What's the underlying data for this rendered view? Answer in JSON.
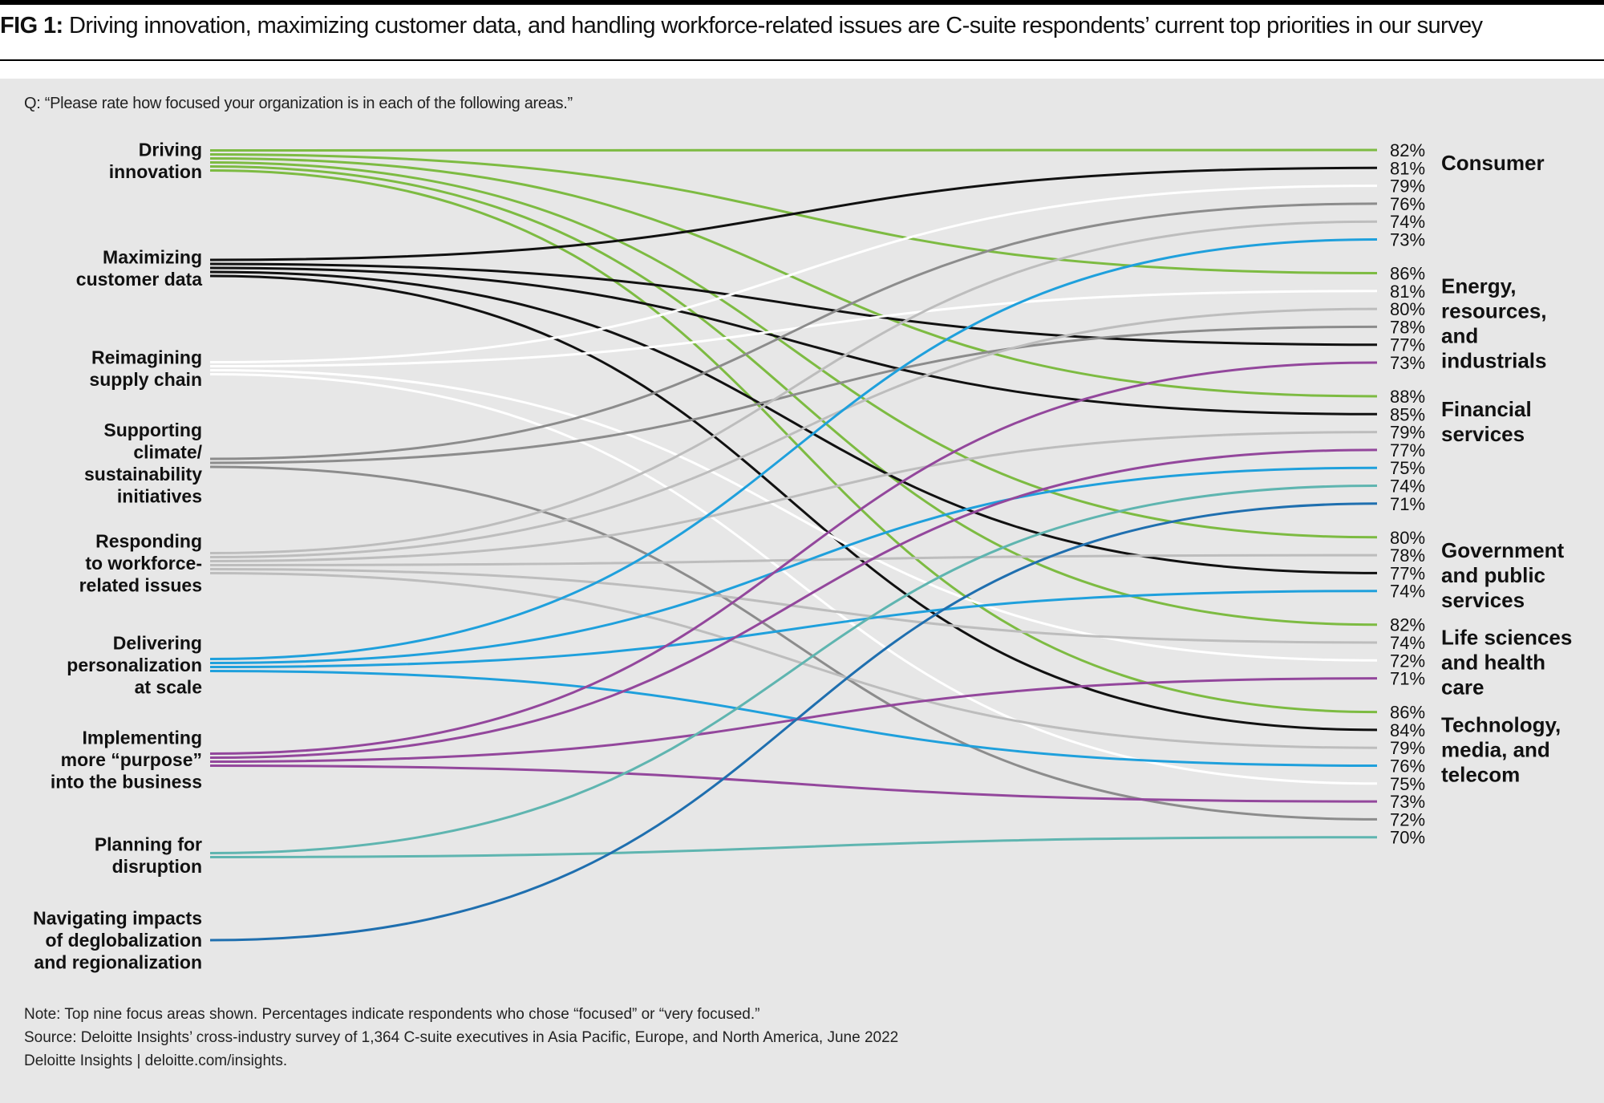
{
  "figure": {
    "label": "FIG 1:",
    "title": "Driving innovation, maximizing customer data, and handling workforce-related issues are C-suite respondents’ current top priorities in our survey",
    "question": "Q: “Please rate how focused your organization is in each of the following areas.”"
  },
  "footer": {
    "note": "Note: Top nine focus areas shown. Percentages indicate respondents who chose “focused” or “very focused.”",
    "source": "Source: Deloitte Insights’ cross-industry survey of 1,364 C-suite executives in Asia Pacific, Europe, and North America, June 2022",
    "credit": "Deloitte Insights | deloitte.com/insights."
  },
  "colors": {
    "background": "#e7e7e7",
    "Driving innovation": "#7dbb42",
    "Maximizing customer data": "#111111",
    "Reimagining supply chain": "#ffffff",
    "Supporting climate/ sustainability initiatives": "#8c8c8c",
    "Responding to workforce-related issues": "#bdbdbd",
    "Delivering personalization at scale": "#1fa0dc",
    "Implementing more “purpose” into the business": "#93479c",
    "Planning for disruption": "#5fb5b0",
    "Navigating impacts of deglobalization and regionalization": "#1f6faf"
  },
  "chart_data": {
    "type": "slope",
    "focus_areas": [
      {
        "name": "Driving innovation",
        "lines": [
          "Driving",
          "innovation"
        ]
      },
      {
        "name": "Maximizing customer data",
        "lines": [
          "Maximizing",
          "customer data"
        ]
      },
      {
        "name": "Reimagining supply chain",
        "lines": [
          "Reimagining",
          "supply chain"
        ]
      },
      {
        "name": "Supporting climate/ sustainability initiatives",
        "lines": [
          "Supporting",
          "climate/",
          "sustainability",
          "initiatives"
        ]
      },
      {
        "name": "Responding to workforce-related issues",
        "lines": [
          "Responding",
          "to workforce-",
          "related issues"
        ]
      },
      {
        "name": "Delivering personalization at scale",
        "lines": [
          "Delivering",
          "personalization",
          "at scale"
        ]
      },
      {
        "name": "Implementing more “purpose” into the business",
        "lines": [
          "Implementing",
          "more “purpose”",
          "into the business"
        ]
      },
      {
        "name": "Planning for disruption",
        "lines": [
          "Planning for",
          "disruption"
        ]
      },
      {
        "name": "Navigating impacts of deglobalization and regionalization",
        "lines": [
          "Navigating impacts",
          "of deglobalization",
          "and regionalization"
        ]
      }
    ],
    "industries": [
      {
        "name": "Consumer",
        "lines": [
          "Consumer"
        ],
        "entries": [
          {
            "area": "Driving innovation",
            "value": 82
          },
          {
            "area": "Maximizing customer data",
            "value": 81
          },
          {
            "area": "Reimagining supply chain",
            "value": 79
          },
          {
            "area": "Supporting climate/ sustainability initiatives",
            "value": 76
          },
          {
            "area": "Responding to workforce-related issues",
            "value": 74
          },
          {
            "area": "Delivering personalization at scale",
            "value": 73
          }
        ]
      },
      {
        "name": "Energy, resources, and industrials",
        "lines": [
          "Energy,",
          "resources,",
          "and",
          "industrials"
        ],
        "entries": [
          {
            "area": "Driving innovation",
            "value": 86
          },
          {
            "area": "Reimagining supply chain",
            "value": 81
          },
          {
            "area": "Responding to workforce-related issues",
            "value": 80
          },
          {
            "area": "Supporting climate/ sustainability initiatives",
            "value": 78
          },
          {
            "area": "Maximizing customer data",
            "value": 77
          },
          {
            "area": "Implementing more “purpose” into the business",
            "value": 73
          }
        ]
      },
      {
        "name": "Financial services",
        "lines": [
          "Financial",
          "services"
        ],
        "entries": [
          {
            "area": "Driving innovation",
            "value": 88
          },
          {
            "area": "Maximizing customer data",
            "value": 85
          },
          {
            "area": "Responding to workforce-related issues",
            "value": 79
          },
          {
            "area": "Implementing more “purpose” into the business",
            "value": 77
          },
          {
            "area": "Delivering personalization at scale",
            "value": 75
          },
          {
            "area": "Planning for disruption",
            "value": 74
          },
          {
            "area": "Navigating impacts of deglobalization and regionalization",
            "value": 71
          }
        ]
      },
      {
        "name": "Government and public services",
        "lines": [
          "Government",
          "and public",
          "services"
        ],
        "entries": [
          {
            "area": "Driving innovation",
            "value": 80
          },
          {
            "area": "Responding to workforce-related issues",
            "value": 78
          },
          {
            "area": "Maximizing customer data",
            "value": 77
          },
          {
            "area": "Delivering personalization at scale",
            "value": 74
          }
        ]
      },
      {
        "name": "Life sciences and health care",
        "lines": [
          "Life sciences",
          "and health",
          "care"
        ],
        "entries": [
          {
            "area": "Driving innovation",
            "value": 82
          },
          {
            "area": "Responding to workforce-related issues",
            "value": 74
          },
          {
            "area": "Reimagining supply chain",
            "value": 72
          },
          {
            "area": "Implementing more “purpose” into the business",
            "value": 71
          }
        ]
      },
      {
        "name": "Technology, media, and telecom",
        "lines": [
          "Technology,",
          "media, and",
          "telecom"
        ],
        "entries": [
          {
            "area": "Driving innovation",
            "value": 86
          },
          {
            "area": "Maximizing customer data",
            "value": 84
          },
          {
            "area": "Responding to workforce-related issues",
            "value": 79
          },
          {
            "area": "Delivering personalization at scale",
            "value": 76
          },
          {
            "area": "Reimagining supply chain",
            "value": 75
          },
          {
            "area": "Implementing more “purpose” into the business",
            "value": 73
          },
          {
            "area": "Supporting climate/ sustainability initiatives",
            "value": 72
          },
          {
            "area": "Planning for disruption",
            "value": 70
          }
        ]
      }
    ]
  }
}
